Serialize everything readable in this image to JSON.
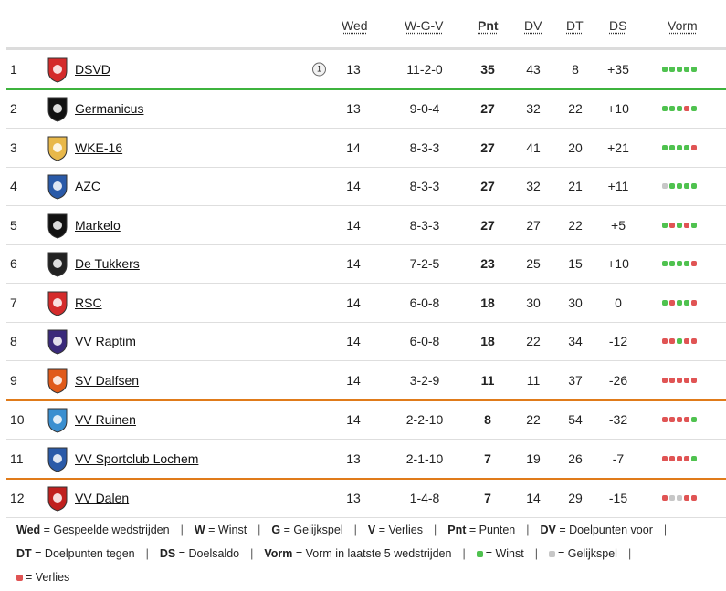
{
  "header": {
    "wed": "Wed",
    "wgv": "W-G-V",
    "pnt": "Pnt",
    "dv": "DV",
    "dt": "DT",
    "ds": "DS",
    "vorm": "Vorm"
  },
  "rows": [
    {
      "pos": "1",
      "team": "DSVD",
      "badge": "1",
      "wed": "13",
      "wgv": "11-2-0",
      "pnt": "35",
      "dv": "43",
      "dt": "8",
      "ds": "+35",
      "form": [
        "w",
        "w",
        "w",
        "w",
        "w"
      ],
      "logo_color": "#d42b2b"
    },
    {
      "pos": "2",
      "team": "Germanicus",
      "wed": "13",
      "wgv": "9-0-4",
      "pnt": "27",
      "dv": "32",
      "dt": "22",
      "ds": "+10",
      "form": [
        "w",
        "w",
        "w",
        "l",
        "w"
      ],
      "logo_color": "#111111"
    },
    {
      "pos": "3",
      "team": "WKE-16",
      "wed": "14",
      "wgv": "8-3-3",
      "pnt": "27",
      "dv": "41",
      "dt": "20",
      "ds": "+21",
      "form": [
        "w",
        "w",
        "w",
        "w",
        "l"
      ],
      "logo_color": "#e8b84a"
    },
    {
      "pos": "4",
      "team": "AZC",
      "wed": "14",
      "wgv": "8-3-3",
      "pnt": "27",
      "dv": "32",
      "dt": "21",
      "ds": "+11",
      "form": [
        "d",
        "w",
        "w",
        "w",
        "w"
      ],
      "logo_color": "#2a5aa8"
    },
    {
      "pos": "5",
      "team": "Markelo",
      "wed": "14",
      "wgv": "8-3-3",
      "pnt": "27",
      "dv": "27",
      "dt": "22",
      "ds": "+5",
      "form": [
        "w",
        "l",
        "w",
        "l",
        "w"
      ],
      "logo_color": "#111111"
    },
    {
      "pos": "6",
      "team": "De Tukkers",
      "wed": "14",
      "wgv": "7-2-5",
      "pnt": "23",
      "dv": "25",
      "dt": "15",
      "ds": "+10",
      "form": [
        "w",
        "w",
        "w",
        "w",
        "l"
      ],
      "logo_color": "#222222"
    },
    {
      "pos": "7",
      "team": "RSC",
      "wed": "14",
      "wgv": "6-0-8",
      "pnt": "18",
      "dv": "30",
      "dt": "30",
      "ds": "0",
      "form": [
        "w",
        "l",
        "w",
        "w",
        "l"
      ],
      "logo_color": "#d42b2b"
    },
    {
      "pos": "8",
      "team": "VV Raptim",
      "wed": "14",
      "wgv": "6-0-8",
      "pnt": "18",
      "dv": "22",
      "dt": "34",
      "ds": "-12",
      "form": [
        "l",
        "l",
        "w",
        "l",
        "l"
      ],
      "logo_color": "#3a2a7a"
    },
    {
      "pos": "9",
      "team": "SV Dalfsen",
      "wed": "14",
      "wgv": "3-2-9",
      "pnt": "11",
      "dv": "11",
      "dt": "37",
      "ds": "-26",
      "form": [
        "l",
        "l",
        "l",
        "l",
        "l"
      ],
      "logo_color": "#e05a1a"
    },
    {
      "pos": "10",
      "team": "VV Ruinen",
      "wed": "14",
      "wgv": "2-2-10",
      "pnt": "8",
      "dv": "22",
      "dt": "54",
      "ds": "-32",
      "form": [
        "l",
        "l",
        "l",
        "l",
        "w"
      ],
      "logo_color": "#3a8fd0"
    },
    {
      "pos": "11",
      "team": "VV Sportclub Lochem",
      "wed": "13",
      "wgv": "2-1-10",
      "pnt": "7",
      "dv": "19",
      "dt": "26",
      "ds": "-7",
      "form": [
        "l",
        "l",
        "l",
        "l",
        "w"
      ],
      "logo_color": "#2a5aa8"
    },
    {
      "pos": "12",
      "team": "VV Dalen",
      "wed": "13",
      "wgv": "1-4-8",
      "pnt": "7",
      "dv": "14",
      "dt": "29",
      "ds": "-15",
      "form": [
        "l",
        "d",
        "d",
        "l",
        "l"
      ],
      "logo_color": "#c0201e"
    }
  ],
  "legend": {
    "wed_key": "Wed",
    "wed_val": "= Gespeelde wedstrijden",
    "w_key": "W",
    "w_val": "= Winst",
    "g_key": "G",
    "g_val": "= Gelijkspel",
    "v_key": "V",
    "v_val": "= Verlies",
    "pnt_key": "Pnt",
    "pnt_val": "= Punten",
    "dv_key": "DV",
    "dv_val": "= Doelpunten voor",
    "dt_key": "DT",
    "dt_val": "= Doelpunten tegen",
    "ds_key": "DS",
    "ds_val": "= Doelsaldo",
    "vorm_key": "Vorm",
    "vorm_val": "= Vorm in laatste 5 wedstrijden",
    "win_val": "= Winst",
    "draw_val": "= Gelijkspel",
    "loss_val": "= Verlies"
  },
  "colors": {
    "win": "#4fc24f",
    "draw": "#c7c7c7",
    "loss": "#e05454",
    "promotion_line": "#3db33d",
    "relegation_line": "#e07b1a"
  }
}
